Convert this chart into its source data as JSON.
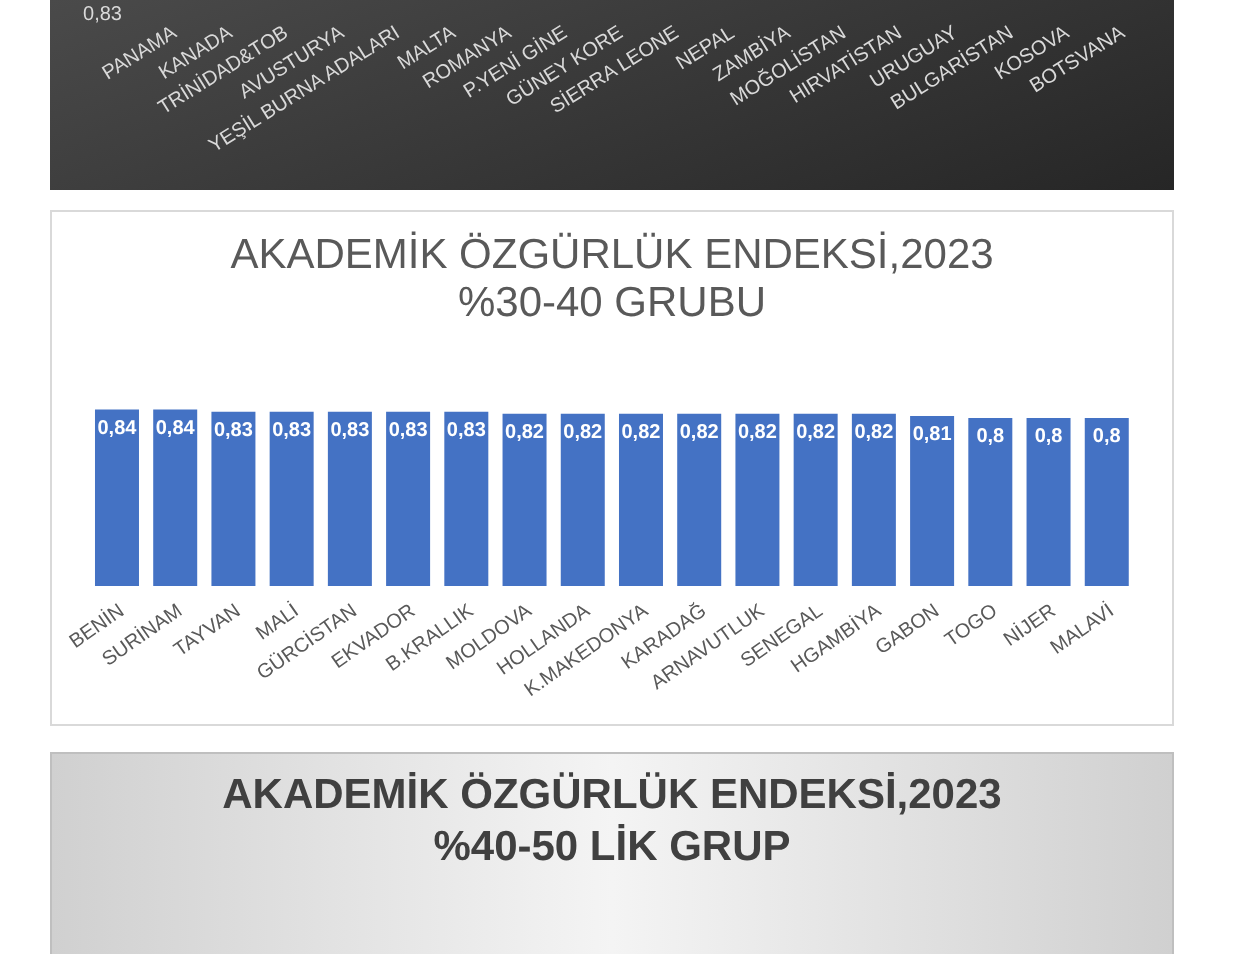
{
  "chart_data": [
    {
      "type": "other",
      "categories": [
        "PANAMA",
        "KANADA",
        "TRİNİDAD&TOB",
        "AVUSTURYA",
        "YEŞİL BURNA ADALARI",
        "MALTA",
        "ROMANYA",
        "P.YENİ GİNE",
        "GÜNEY KORE",
        "SİERRA LEONE",
        "NEPAL",
        "ZAMBİYA",
        "MOĞOLİSTAN",
        "HIRVATİSTAN",
        "URUGUAY",
        "BULGARİSTAN",
        "KOSOVA",
        "BOTSVANA"
      ],
      "annotations": [
        "0,83"
      ]
    },
    {
      "type": "bar",
      "title": "AKADEMİK ÖZGÜRLÜK ENDEKSİ,2023 %30-40 GRUBU",
      "categories": [
        "BENİN",
        "SURİNAM",
        "TAYVAN",
        "MALİ",
        "GÜRCİSTAN",
        "EKVADOR",
        "B.KRALLIK",
        "MOLDOVA",
        "HOLLANDA",
        "K.MAKEDONYA",
        "KARADAĞ",
        "ARNAVUTLUK",
        "SENEGAL",
        "HGAMBİYA",
        "GABON",
        "TOGO",
        "NİJER",
        "MALAVİ"
      ],
      "values": [
        0.84,
        0.84,
        0.83,
        0.83,
        0.83,
        0.83,
        0.83,
        0.82,
        0.82,
        0.82,
        0.82,
        0.82,
        0.82,
        0.82,
        0.81,
        0.8,
        0.8,
        0.8
      ],
      "value_labels": [
        "0,84",
        "0,84",
        "0,83",
        "0,83",
        "0,83",
        "0,83",
        "0,83",
        "0,82",
        "0,82",
        "0,82",
        "0,82",
        "0,82",
        "0,82",
        "0,82",
        "0,81",
        "0,8",
        "0,8",
        "0,8"
      ],
      "color": "#4472c4"
    },
    {
      "type": "other",
      "title": "AKADEMİK ÖZGÜRLÜK ENDEKSİ,2023 %40-50 LİK GRUP"
    }
  ]
}
